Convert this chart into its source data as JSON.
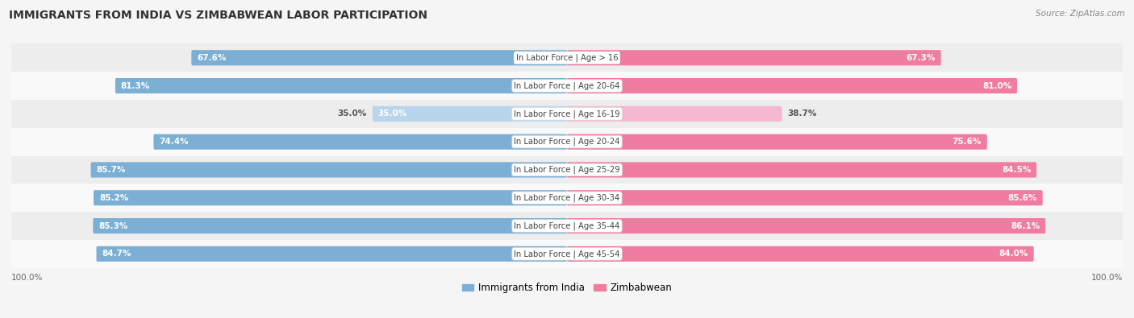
{
  "title": "IMMIGRANTS FROM INDIA VS ZIMBABWEAN LABOR PARTICIPATION",
  "source": "Source: ZipAtlas.com",
  "categories": [
    "In Labor Force | Age > 16",
    "In Labor Force | Age 20-64",
    "In Labor Force | Age 16-19",
    "In Labor Force | Age 20-24",
    "In Labor Force | Age 25-29",
    "In Labor Force | Age 30-34",
    "In Labor Force | Age 35-44",
    "In Labor Force | Age 45-54"
  ],
  "india_values": [
    67.6,
    81.3,
    35.0,
    74.4,
    85.7,
    85.2,
    85.3,
    84.7
  ],
  "zimbabwe_values": [
    67.3,
    81.0,
    38.7,
    75.6,
    84.5,
    85.6,
    86.1,
    84.0
  ],
  "india_color": "#7bafd4",
  "india_color_light": "#b8d5eb",
  "zimbabwe_color": "#f07ca0",
  "zimbabwe_color_light": "#f5b8ce",
  "row_bg_light": "#ededee",
  "row_bg_white": "#f9f9fa",
  "max_value": 100.0,
  "legend_india": "Immigrants from India",
  "legend_zimbabwe": "Zimbabwean",
  "title_fontsize": 10,
  "bar_height": 0.55,
  "value_fontsize": 7.5,
  "label_fontsize": 7.2,
  "threshold_dark": 50
}
